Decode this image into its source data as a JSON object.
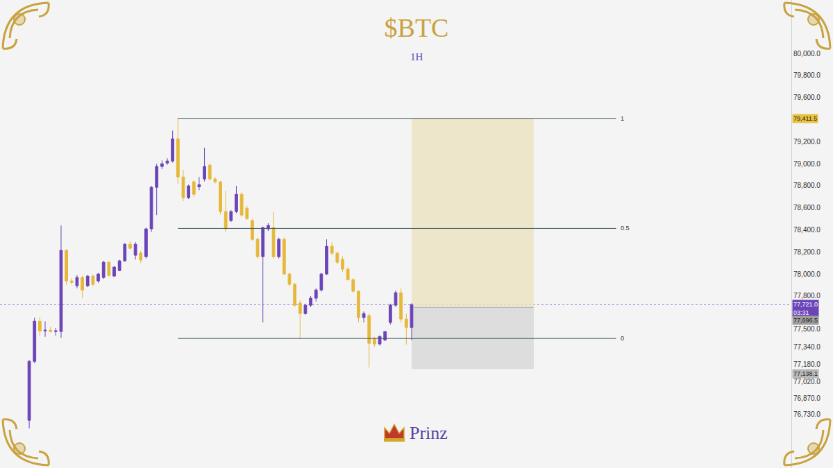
{
  "chart_data": {
    "type": "candlestick",
    "title": "$BTC",
    "subtitle": "1H",
    "x": [
      0,
      1,
      2,
      3,
      4,
      5,
      6,
      7,
      8,
      9,
      10,
      11,
      12,
      13,
      14,
      15,
      16,
      17,
      18,
      19,
      20,
      21,
      22,
      23,
      24,
      25,
      26,
      27,
      28,
      29,
      30,
      31,
      32,
      33,
      34,
      35,
      36,
      37,
      38,
      39,
      40,
      41,
      42,
      43,
      44,
      45,
      46,
      47,
      48,
      49,
      50,
      51,
      52,
      53,
      54,
      55,
      56,
      57,
      58,
      59,
      60,
      61,
      62,
      63,
      64,
      65,
      66,
      67,
      68,
      69,
      70,
      71,
      72
    ],
    "open": [
      76673,
      77207,
      77572,
      77484,
      77490,
      77478,
      77478,
      78214,
      77937,
      77893,
      77968,
      77893,
      77981,
      77937,
      77968,
      78107,
      77981,
      78031,
      78119,
      78270,
      78170,
      78189,
      78157,
      78409,
      78786,
      78975,
      79006,
      79025,
      79226,
      78880,
      78692,
      78836,
      78790,
      78862,
      78987,
      78862,
      78836,
      78566,
      78484,
      78566,
      78723,
      78597,
      78484,
      78314,
      78157,
      78409,
      78421,
      78157,
      78314,
      78000,
      77906,
      77736,
      77641,
      77717,
      77780,
      77855,
      78000,
      78251,
      78189,
      78130,
      78044,
      77949,
      77843,
      77604,
      77622,
      77415,
      77365,
      77402,
      77560,
      77717,
      77830,
      77591,
      77515
    ],
    "high": [
      77220,
      77604,
      77610,
      77570,
      77520,
      77510,
      78440,
      78225,
      77960,
      77990,
      77985,
      77990,
      77995,
      78010,
      78120,
      78115,
      78070,
      78130,
      78280,
      78300,
      78290,
      78210,
      78420,
      78800,
      79000,
      79030,
      79050,
      79300,
      79411.5,
      78943,
      78810,
      78850,
      78880,
      79145,
      79000,
      78880,
      78845,
      78755,
      78580,
      78799,
      78740,
      78620,
      78500,
      78330,
      78430,
      78460,
      78566,
      78330,
      78330,
      78010,
      77920,
      77760,
      77730,
      77800,
      77870,
      78010,
      78314,
      78290,
      78200,
      78160,
      78060,
      77960,
      77850,
      77660,
      77640,
      77430,
      77440,
      77480,
      77730,
      77850,
      77870,
      77640,
      77736
    ],
    "low": [
      76600,
      77190,
      77440,
      77430,
      77470,
      77440,
      77420,
      77900,
      77905,
      77870,
      77780,
      77880,
      77890,
      77920,
      77955,
      77975,
      77975,
      78025,
      78110,
      78220,
      78130,
      78100,
      78140,
      78380,
      78534,
      78950,
      78990,
      79010,
      78817,
      78660,
      78680,
      78700,
      78760,
      78840,
      78850,
      78820,
      78540,
      78377,
      78470,
      78550,
      78520,
      78490,
      78300,
      78140,
      77560,
      78390,
      78140,
      78140,
      77990,
      77890,
      77700,
      77415,
      77630,
      77700,
      77750,
      77840,
      77990,
      78170,
      78090,
      78020,
      77940,
      77830,
      77560,
      77560,
      77151,
      77340,
      77350,
      77390,
      77540,
      77700,
      77560,
      77358,
      77400
    ],
    "close": [
      77207,
      77572,
      77484,
      77490,
      77478,
      77484,
      78214,
      77937,
      77924,
      77968,
      77855,
      77981,
      77906,
      78000,
      78107,
      77987,
      78063,
      78119,
      78270,
      78233,
      78270,
      78126,
      78409,
      78786,
      78975,
      79000,
      79025,
      79226,
      78880,
      78692,
      78799,
      78723,
      78810,
      78975,
      78862,
      78836,
      78566,
      78409,
      78566,
      78723,
      78534,
      78503,
      78314,
      78157,
      78421,
      78440,
      78157,
      78314,
      78000,
      77906,
      77717,
      77641,
      77717,
      77780,
      77855,
      78000,
      78251,
      78189,
      78107,
      78044,
      77949,
      77843,
      77604,
      77641,
      77371,
      77365,
      77434,
      77478,
      77717,
      77830,
      77591,
      77515,
      77721
    ],
    "xlim": [
      -5.5,
      143.5
    ],
    "ylim": [
      76240,
      80485
    ],
    "yticks": [
      {
        "value": 80000,
        "label": "80,000.0"
      },
      {
        "value": 79800,
        "label": "79,800.0"
      },
      {
        "value": 79600,
        "label": "79,600.0"
      },
      {
        "value": 79200,
        "label": "79,200.0"
      },
      {
        "value": 79000,
        "label": "79,000.0"
      },
      {
        "value": 78800,
        "label": "78,800.0"
      },
      {
        "value": 78600,
        "label": "78,600.0"
      },
      {
        "value": 78400,
        "label": "78,400.0"
      },
      {
        "value": 78200,
        "label": "78,200.0"
      },
      {
        "value": 78000,
        "label": "78,000.0"
      },
      {
        "value": 77800,
        "label": "77,800.0"
      },
      {
        "value": 77500,
        "label": "77,500.0"
      },
      {
        "value": 77340,
        "label": "77,340.0"
      },
      {
        "value": 77180,
        "label": "77,180.0"
      },
      {
        "value": 77020,
        "label": "77,020.0"
      },
      {
        "value": 76870,
        "label": "76,870.0"
      },
      {
        "value": 76730,
        "label": "76,730.0"
      }
    ],
    "tick_labels": "y",
    "grid": false,
    "fibonacci": {
      "x_start": 28,
      "x_end": 110.5,
      "levels": [
        {
          "label": "1",
          "value": 79411.5
        },
        {
          "label": "0.5",
          "value": 78413.25
        },
        {
          "label": "0",
          "value": 77415
        }
      ]
    },
    "position": {
      "x_start": 72,
      "x_end": 95,
      "entry": 77696.5,
      "target": 79411.5,
      "stop": 77138.1
    },
    "price_labels": [
      {
        "value": 79411.5,
        "label": "79,411.5",
        "color": "#e9c23f"
      },
      {
        "value": 77721,
        "label": "77,721.0",
        "countdown": "03:31",
        "color": "#6b45b8"
      },
      {
        "value": 77696.5,
        "label": "77,696.5",
        "color": "#9e9e9e"
      },
      {
        "value": 77138.1,
        "label": "77,138.1",
        "color": "#b8b8b8"
      }
    ],
    "watermark": "Prinz"
  }
}
